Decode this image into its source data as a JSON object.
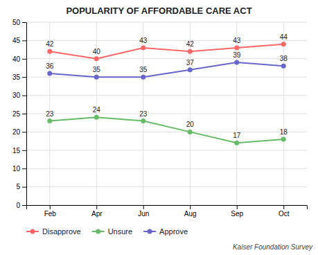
{
  "chart_data": {
    "type": "line",
    "title": "POPULARITY OF AFFORDABLE CARE ACT",
    "categories": [
      "Feb",
      "Apr",
      "Jun",
      "Aug",
      "Sep",
      "Oct"
    ],
    "series": [
      {
        "name": "Disapprove",
        "color": "#FF6666",
        "values": [
          42,
          40,
          43,
          42,
          43,
          44
        ]
      },
      {
        "name": "Unsure",
        "color": "#66BB66",
        "values": [
          23,
          24,
          23,
          20,
          17,
          18
        ]
      },
      {
        "name": "Approve",
        "color": "#6666CC",
        "values": [
          36,
          35,
          35,
          37,
          39,
          38
        ]
      }
    ],
    "ylim": [
      0,
      50
    ],
    "yticks": [
      0,
      5,
      10,
      15,
      20,
      25,
      30,
      35,
      40,
      45,
      50
    ],
    "grid": true,
    "data_labels": true,
    "marker": "circle",
    "legend": "bottom",
    "annotations": [
      "Kaiser Foundation Survey"
    ]
  }
}
